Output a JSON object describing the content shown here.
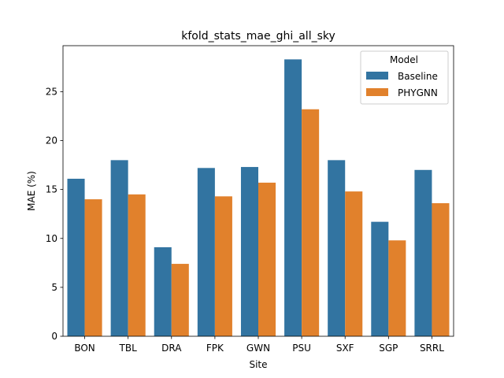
{
  "chart_data": {
    "type": "bar",
    "title": "kfold_stats_mae_ghi_all_sky",
    "xlabel": "Site",
    "ylabel": "MAE (%)",
    "categories": [
      "BON",
      "TBL",
      "DRA",
      "FPK",
      "GWN",
      "PSU",
      "SXF",
      "SGP",
      "SRRL"
    ],
    "series": [
      {
        "name": "Baseline",
        "color": "#3274a1",
        "values": [
          16.1,
          18.0,
          9.1,
          17.2,
          17.3,
          28.3,
          18.0,
          11.7,
          17.0
        ]
      },
      {
        "name": "PHYGNN",
        "color": "#e1812c",
        "values": [
          14.0,
          14.5,
          7.4,
          14.3,
          15.7,
          23.2,
          14.8,
          9.8,
          13.6
        ]
      }
    ],
    "yticks": [
      0,
      5,
      10,
      15,
      20,
      25
    ],
    "ylim": [
      0,
      29.7
    ],
    "grid": false,
    "legend": {
      "title": "Model",
      "placement": "top-right"
    }
  }
}
